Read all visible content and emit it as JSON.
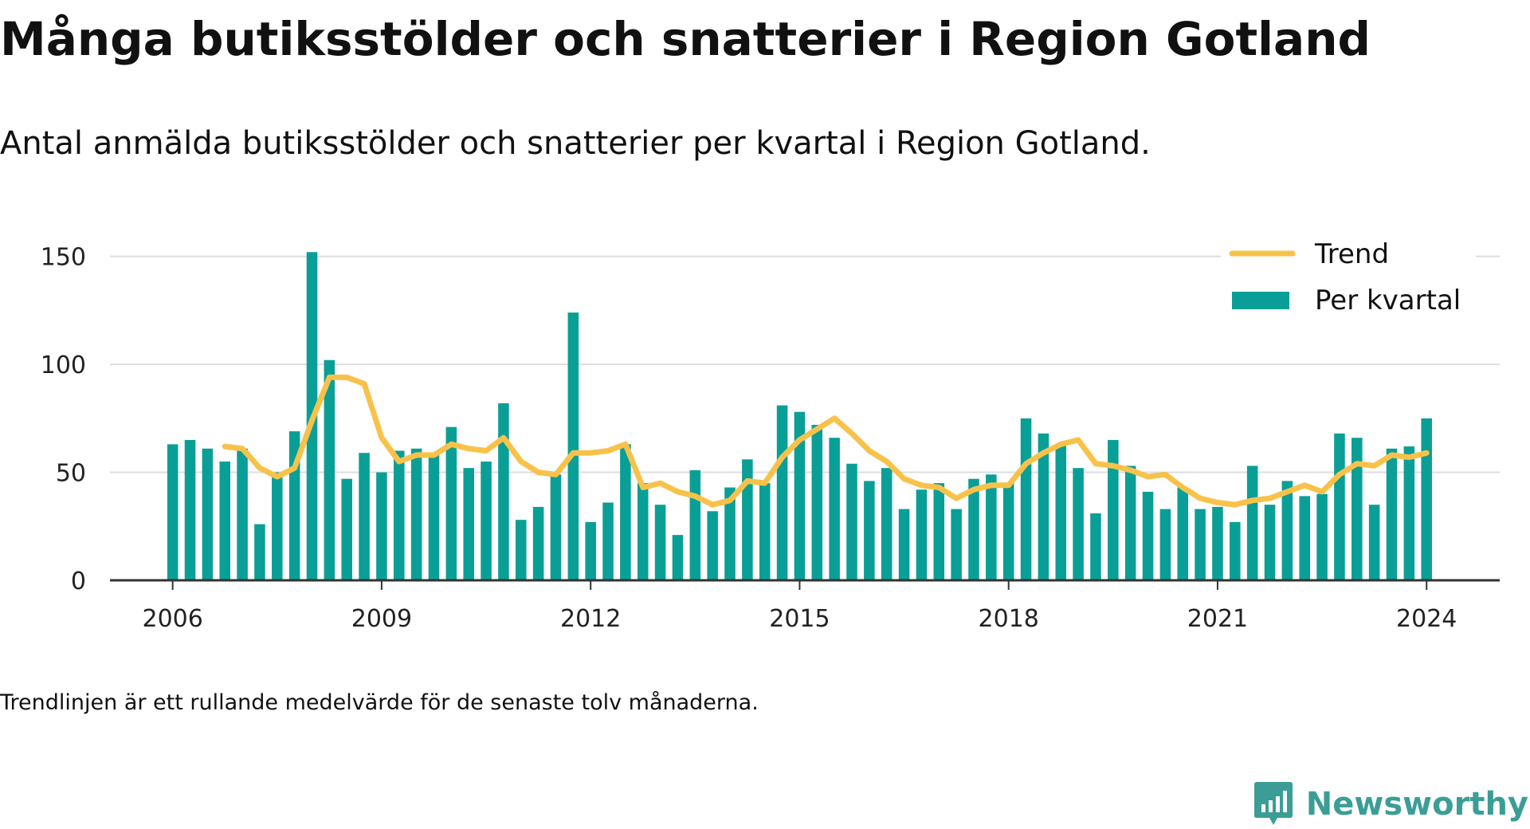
{
  "title": "Många butiksstölder och snatterier i Region Gotland",
  "subtitle": "Antal anmälda butiksstölder och snatterier per kvartal i Region Gotland.",
  "footnote": "Trendlinjen är ett rullande medelvärde för de senaste tolv månaderna.",
  "brand": {
    "name": "Newsworthy",
    "icon": "newsworthy-logo-icon",
    "color": "#3a9e96"
  },
  "chart_data": {
    "type": "bar",
    "x_ticks": [
      2006,
      2009,
      2012,
      2015,
      2018,
      2021,
      2024
    ],
    "y_ticks": [
      0,
      50,
      100,
      150
    ],
    "ylim": [
      0,
      158
    ],
    "xlim": [
      2005.1,
      2025.05
    ],
    "grid": true,
    "legend_position": "top-right",
    "colors": {
      "bars": "#0a9f96",
      "trend": "#f8c24a",
      "grid": "#dddddd",
      "axis": "#333333"
    },
    "series": [
      {
        "name": "Per kvartal",
        "type": "bar",
        "start": 2006.0,
        "step": 0.25,
        "values": [
          63,
          65,
          61,
          55,
          61,
          26,
          50,
          69,
          152,
          102,
          47,
          59,
          50,
          60,
          61,
          59,
          71,
          52,
          55,
          82,
          28,
          34,
          49,
          124,
          27,
          36,
          63,
          45,
          35,
          21,
          51,
          32,
          43,
          56,
          45,
          81,
          78,
          72,
          66,
          54,
          46,
          52,
          33,
          42,
          45,
          33,
          47,
          49,
          45,
          75,
          68,
          63,
          52,
          31,
          65,
          53,
          41,
          33,
          43,
          33,
          34,
          27,
          53,
          35,
          46,
          39,
          40,
          68,
          66,
          35,
          61,
          62,
          75
        ]
      },
      {
        "name": "Trend",
        "type": "line",
        "start": 2006.75,
        "step": 0.25,
        "values": [
          62,
          61,
          52,
          48,
          52,
          74,
          94,
          94,
          91,
          66,
          55,
          58,
          58,
          63,
          61,
          60,
          66,
          55,
          50,
          49,
          59,
          59,
          60,
          63,
          43,
          45,
          41,
          39,
          35,
          37,
          46,
          45,
          57,
          65,
          70,
          75,
          68,
          60,
          55,
          47,
          44,
          43,
          38,
          42,
          44,
          44,
          54,
          59,
          63,
          65,
          54,
          53,
          51,
          48,
          49,
          43,
          38,
          36,
          35,
          37,
          38,
          41,
          44,
          41,
          49,
          54,
          53,
          58,
          57,
          59
        ]
      }
    ]
  }
}
